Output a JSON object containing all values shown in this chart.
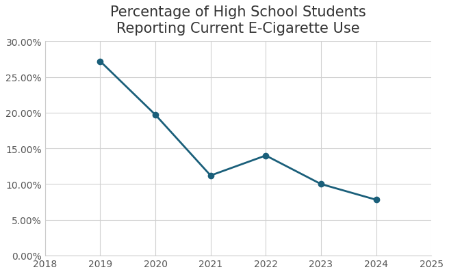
{
  "title": "Percentage of High School Students\nReporting Current E-Cigarette Use",
  "x_values": [
    2019,
    2020,
    2021,
    2022,
    2023,
    2024
  ],
  "y_values": [
    0.272,
    0.197,
    0.112,
    0.14,
    0.1,
    0.078
  ],
  "xlim": [
    2018,
    2025
  ],
  "ylim": [
    0.0,
    0.3
  ],
  "yticks": [
    0.0,
    0.05,
    0.1,
    0.15,
    0.2,
    0.25,
    0.3
  ],
  "xticks": [
    2018,
    2019,
    2020,
    2021,
    2022,
    2023,
    2024,
    2025
  ],
  "line_color": "#1a5f7a",
  "marker": "o",
  "marker_size": 6,
  "line_width": 2.0,
  "background_color": "#ffffff",
  "plot_bg_color": "#ffffff",
  "title_fontsize": 15,
  "tick_fontsize": 10,
  "grid_color": "#d0d0d0",
  "grid_linewidth": 0.8
}
